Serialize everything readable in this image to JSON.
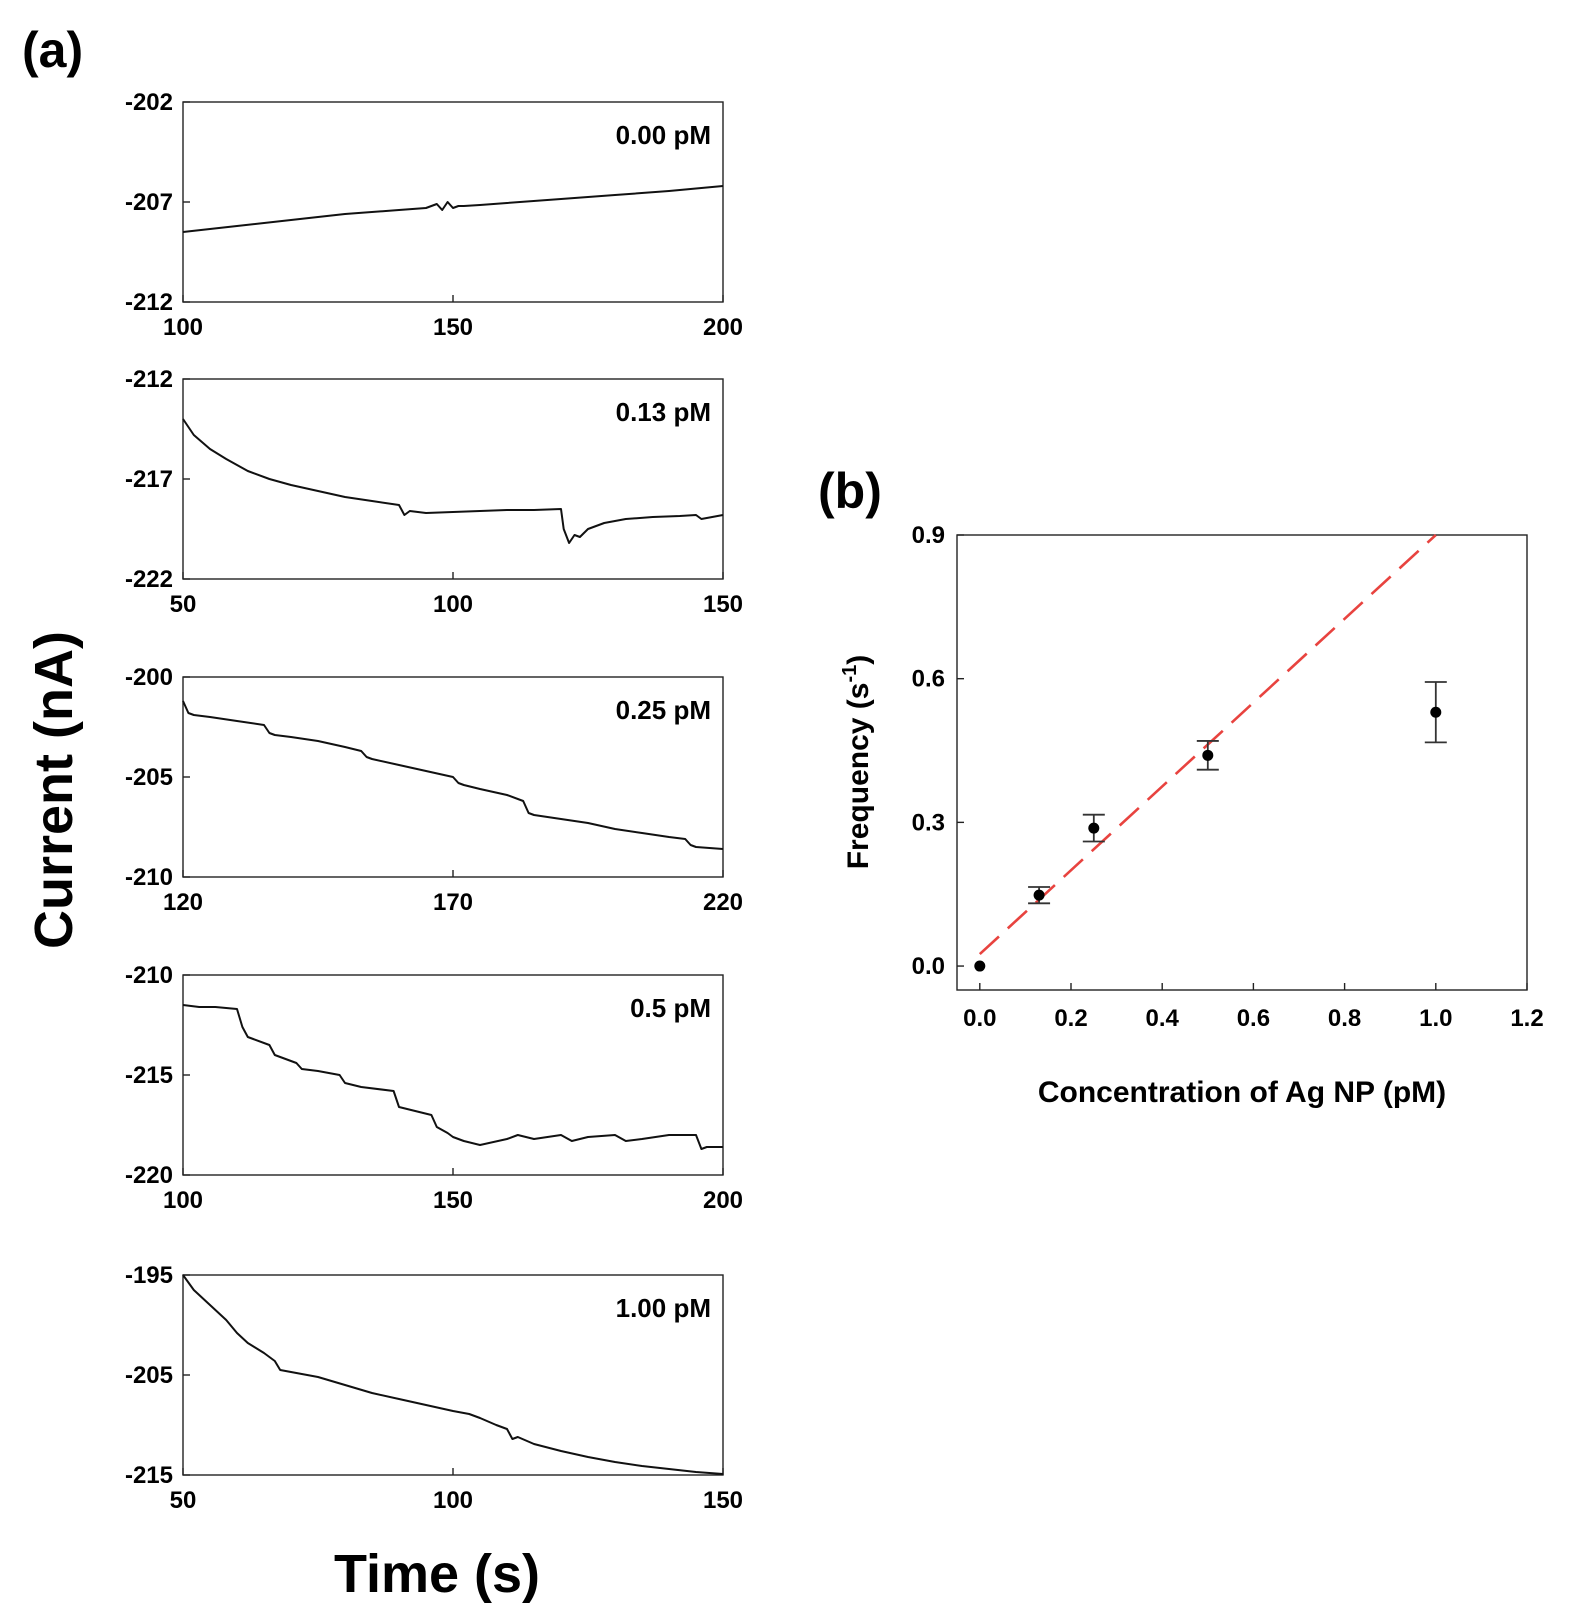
{
  "figure": {
    "panel_a_label": "(a)",
    "panel_b_label": "(b)",
    "a_ylabel": "Current (nA)",
    "a_xlabel": "Time (s)"
  },
  "chart_data": [
    {
      "type": "line",
      "panel": "a",
      "title": "0.00 pM",
      "xlabel": "Time (s)",
      "ylabel": "Current (nA)",
      "xlim": [
        100,
        200
      ],
      "ylim": [
        -212,
        -202
      ],
      "xticks": [
        "100",
        "150",
        "200"
      ],
      "yticks": [
        "-202",
        "-207",
        "-212"
      ],
      "x": [
        100,
        110,
        120,
        130,
        140,
        145,
        147,
        148,
        149,
        150,
        151,
        152,
        155,
        160,
        170,
        180,
        190,
        200
      ],
      "y": [
        -208.5,
        -208.2,
        -207.9,
        -207.6,
        -207.4,
        -207.3,
        -207.1,
        -207.4,
        -207.0,
        -207.3,
        -207.2,
        -207.2,
        -207.15,
        -207.05,
        -206.85,
        -206.65,
        -206.45,
        -206.2
      ]
    },
    {
      "type": "line",
      "panel": "a",
      "title": "0.13 pM",
      "xlabel": "Time (s)",
      "ylabel": "Current (nA)",
      "xlim": [
        50,
        150
      ],
      "ylim": [
        -222,
        -212
      ],
      "xticks": [
        "50",
        "100",
        "150"
      ],
      "yticks": [
        "-212",
        "-217",
        "-222"
      ],
      "x": [
        50,
        52,
        55,
        58,
        62,
        66,
        70,
        75,
        80,
        85,
        90,
        91,
        92,
        95,
        100,
        105,
        110,
        115,
        120,
        120.5,
        121.5,
        122.5,
        123.5,
        125,
        128,
        132,
        137,
        142,
        145,
        146,
        150
      ],
      "y": [
        -214.0,
        -214.8,
        -215.5,
        -216.0,
        -216.6,
        -217.0,
        -217.3,
        -217.6,
        -217.9,
        -218.1,
        -218.3,
        -218.8,
        -218.6,
        -218.7,
        -218.65,
        -218.6,
        -218.55,
        -218.55,
        -218.5,
        -219.5,
        -220.2,
        -219.8,
        -219.9,
        -219.5,
        -219.2,
        -219.0,
        -218.9,
        -218.85,
        -218.8,
        -219.0,
        -218.8
      ]
    },
    {
      "type": "line",
      "panel": "a",
      "title": "0.25 pM",
      "xlabel": "Time (s)",
      "ylabel": "Current (nA)",
      "xlim": [
        120,
        220
      ],
      "ylim": [
        -210,
        -200
      ],
      "xticks": [
        "120",
        "170",
        "220"
      ],
      "yticks": [
        "-200",
        "-205",
        "-210"
      ],
      "x": [
        120,
        121,
        122,
        125,
        130,
        135,
        136,
        137,
        140,
        145,
        150,
        153,
        154,
        155,
        160,
        165,
        170,
        171,
        172,
        175,
        180,
        183,
        184,
        185,
        190,
        195,
        200,
        205,
        210,
        213,
        214,
        215,
        220
      ],
      "y": [
        -201.2,
        -201.8,
        -201.9,
        -202.0,
        -202.2,
        -202.4,
        -202.8,
        -202.9,
        -203.0,
        -203.2,
        -203.5,
        -203.7,
        -204.0,
        -204.1,
        -204.4,
        -204.7,
        -205.0,
        -205.3,
        -205.4,
        -205.6,
        -205.9,
        -206.2,
        -206.8,
        -206.9,
        -207.1,
        -207.3,
        -207.6,
        -207.8,
        -208.0,
        -208.1,
        -208.4,
        -208.5,
        -208.6
      ]
    },
    {
      "type": "line",
      "panel": "a",
      "title": "0.5 pM",
      "xlabel": "Time (s)",
      "ylabel": "Current (nA)",
      "xlim": [
        100,
        200
      ],
      "ylim": [
        -220,
        -210
      ],
      "xticks": [
        "100",
        "150",
        "200"
      ],
      "yticks": [
        "-210",
        "-215",
        "-220"
      ],
      "x": [
        100,
        103,
        106,
        110,
        111,
        112,
        113,
        116,
        117,
        118,
        121,
        122,
        125,
        129,
        130,
        133,
        139,
        140,
        143,
        146,
        147,
        149,
        150,
        152,
        155,
        160,
        162,
        165,
        170,
        172,
        175,
        180,
        182,
        185,
        190,
        195,
        196,
        197,
        200
      ],
      "y": [
        -211.5,
        -211.6,
        -211.6,
        -211.7,
        -212.6,
        -213.1,
        -213.2,
        -213.5,
        -214.0,
        -214.1,
        -214.4,
        -214.7,
        -214.8,
        -215.0,
        -215.4,
        -215.6,
        -215.8,
        -216.6,
        -216.8,
        -217.0,
        -217.6,
        -217.9,
        -218.1,
        -218.3,
        -218.5,
        -218.2,
        -218.0,
        -218.2,
        -218.0,
        -218.3,
        -218.1,
        -218.0,
        -218.3,
        -218.2,
        -218.0,
        -218.0,
        -218.7,
        -218.6,
        -218.6
      ]
    },
    {
      "type": "line",
      "panel": "a",
      "title": "1.00 pM",
      "xlabel": "Time (s)",
      "ylabel": "Current (nA)",
      "xlim": [
        50,
        150
      ],
      "ylim": [
        -215,
        -195
      ],
      "xticks": [
        "50",
        "100",
        "150"
      ],
      "yticks": [
        "-195",
        "-205",
        "-215"
      ],
      "x": [
        50,
        52,
        55,
        58,
        60,
        62,
        65,
        67,
        68,
        70,
        75,
        80,
        85,
        90,
        95,
        100,
        103,
        105,
        108,
        110,
        111,
        112,
        115,
        120,
        125,
        130,
        135,
        140,
        145,
        150
      ],
      "y": [
        -195.0,
        -196.5,
        -198.0,
        -199.5,
        -200.8,
        -201.8,
        -202.8,
        -203.6,
        -204.5,
        -204.7,
        -205.2,
        -206.0,
        -206.8,
        -207.4,
        -208.0,
        -208.6,
        -208.9,
        -209.3,
        -210.0,
        -210.4,
        -211.4,
        -211.2,
        -211.9,
        -212.6,
        -213.2,
        -213.7,
        -214.1,
        -214.4,
        -214.7,
        -214.9
      ]
    },
    {
      "type": "scatter",
      "panel": "b",
      "xlabel": "Concentration of Ag NP (pM)",
      "ylabel": "Frequency (s-1)",
      "ylabel_base": "Frequency (s",
      "ylabel_sup": "-1",
      "ylabel_close": ")",
      "xlim": [
        -0.05,
        1.2
      ],
      "ylim": [
        -0.05,
        0.9
      ],
      "xticks": [
        "0.0",
        "0.2",
        "0.4",
        "0.6",
        "0.8",
        "1.0",
        "1.2"
      ],
      "yticks": [
        "0.0",
        "0.3",
        "0.6",
        "0.9"
      ],
      "points": [
        {
          "x": 0.0,
          "y": 0.0,
          "err": 0.0
        },
        {
          "x": 0.13,
          "y": 0.148,
          "err": 0.017
        },
        {
          "x": 0.25,
          "y": 0.288,
          "err": 0.028
        },
        {
          "x": 0.5,
          "y": 0.44,
          "err": 0.03
        },
        {
          "x": 1.0,
          "y": 0.53,
          "err": 0.063
        }
      ],
      "fit_line": {
        "x": [
          0.0,
          1.0
        ],
        "y": [
          0.025,
          0.9
        ],
        "style": "dashed",
        "color": "#e8433f"
      }
    }
  ]
}
